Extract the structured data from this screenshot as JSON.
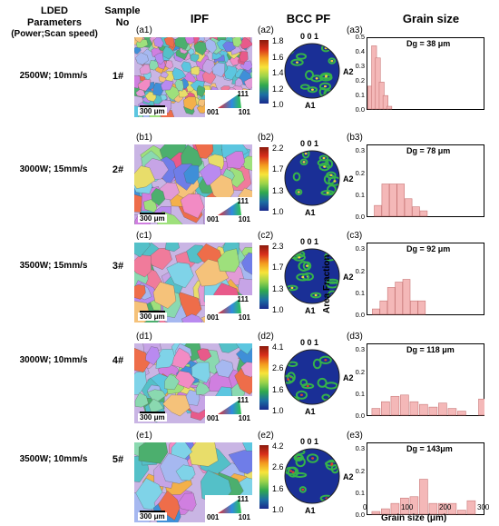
{
  "headers": {
    "params_line1": "LDED",
    "params_line2": "Parameters",
    "params_line3": "(Power;Scan speed)",
    "sample_line1": "Sample",
    "sample_line2": "No",
    "ipf": "IPF",
    "pf": "BCC PF",
    "grain": "Grain size"
  },
  "rows": [
    {
      "param": "2500W; 10mm/s",
      "sample": "1#",
      "ipf_label": "(a1)",
      "cbar_label": "(a2)",
      "gs_label": "(a3)",
      "cbar_ticks": [
        "1.8",
        "1.6",
        "1.4",
        "1.2",
        "1.0"
      ],
      "dg_text": "Dg = 38 μm"
    },
    {
      "param": "3000W; 15mm/s",
      "sample": "2#",
      "ipf_label": "(b1)",
      "cbar_label": "(b2)",
      "gs_label": "(b3)",
      "cbar_ticks": [
        "2.2",
        "1.7",
        "1.3",
        "1.0"
      ],
      "dg_text": "Dg = 78 μm"
    },
    {
      "param": "3500W; 15mm/s",
      "sample": "3#",
      "ipf_label": "(c1)",
      "cbar_label": "(c2)",
      "gs_label": "(c3)",
      "cbar_ticks": [
        "2.3",
        "1.7",
        "1.3",
        "1.0"
      ],
      "dg_text": "Dg = 92 μm"
    },
    {
      "param": "3000W; 10mm/s",
      "sample": "4#",
      "ipf_label": "(d1)",
      "cbar_label": "(d2)",
      "gs_label": "(d3)",
      "cbar_ticks": [
        "4.1",
        "2.6",
        "1.6",
        "1.0"
      ],
      "dg_text": "Dg = 118 μm"
    },
    {
      "param": "3500W; 10mm/s",
      "sample": "5#",
      "ipf_label": "(e1)",
      "cbar_label": "(e2)",
      "gs_label": "(e3)",
      "cbar_ticks": [
        "4.2",
        "2.6",
        "1.6",
        "1.0"
      ],
      "dg_text": "Dg = 143μm"
    }
  ],
  "ipf_scale": "300 μm",
  "ipf_key": {
    "top": "111",
    "left": "001",
    "right": "101"
  },
  "pf_labels": {
    "top": "0 0 1",
    "right": "A2",
    "bottom": "A1"
  },
  "chart_data": {
    "type": "bar",
    "xlabel": "Grain size (μm)",
    "ylabel": "Area Fraction",
    "xlim": [
      0,
      300
    ],
    "ylim": [
      0,
      0.5
    ],
    "yticks": [
      "0.0",
      "0.1",
      "0.2",
      "0.3",
      "0.4",
      "0.5"
    ],
    "xticks": [
      "0",
      "100",
      "200",
      "300"
    ],
    "series": [
      {
        "x": [
          5,
          15,
          25,
          35,
          45,
          55
        ],
        "values": [
          0.17,
          0.47,
          0.38,
          0.2,
          0.1,
          0.02
        ]
      },
      {
        "x": [
          25,
          45,
          65,
          85,
          105,
          125,
          145
        ],
        "values": [
          0.08,
          0.24,
          0.24,
          0.24,
          0.13,
          0.07,
          0.04
        ]
      },
      {
        "x": [
          20,
          40,
          60,
          80,
          100,
          120,
          140
        ],
        "values": [
          0.04,
          0.1,
          0.2,
          0.24,
          0.26,
          0.1,
          0.1
        ]
      },
      {
        "x": [
          20,
          45,
          70,
          95,
          120,
          145,
          170,
          195,
          220,
          245,
          300
        ],
        "values": [
          0.05,
          0.1,
          0.14,
          0.15,
          0.1,
          0.08,
          0.06,
          0.09,
          0.05,
          0.03,
          0.12
        ]
      },
      {
        "x": [
          20,
          45,
          70,
          95,
          120,
          145,
          170,
          195,
          220,
          245,
          270
        ],
        "values": [
          0.02,
          0.04,
          0.08,
          0.12,
          0.13,
          0.26,
          0.08,
          0.08,
          0.08,
          0.03,
          0.1
        ]
      }
    ]
  }
}
